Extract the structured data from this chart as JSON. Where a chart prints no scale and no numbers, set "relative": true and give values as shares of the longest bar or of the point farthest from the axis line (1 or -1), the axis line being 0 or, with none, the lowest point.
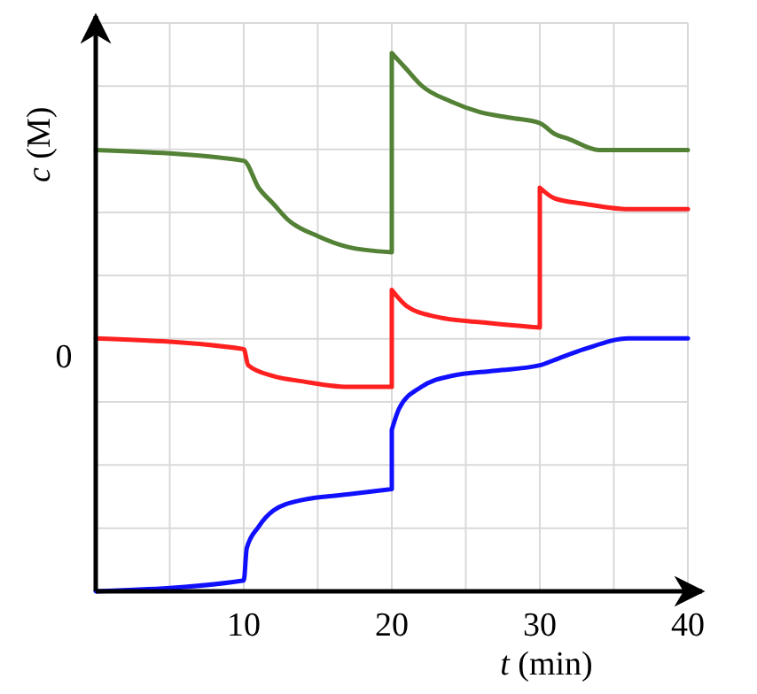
{
  "chart_data": {
    "type": "line",
    "relative": true,
    "xlabel": "t (min)",
    "ylabel": "c (M)",
    "xlim": [
      0,
      40
    ],
    "xticks": [
      {
        "value": 5,
        "label": null
      },
      10,
      {
        "value": 15,
        "label": null
      },
      20,
      {
        "value": 25,
        "label": null
      },
      30,
      {
        "value": 35,
        "label": null
      },
      40
    ],
    "grid": true,
    "line_style": "solid",
    "annotations": [
      "0"
    ],
    "series": [
      {
        "color": "#538135",
        "x": [
          0,
          10,
          11,
          12,
          13,
          15,
          17,
          20,
          20,
          21,
          22,
          24,
          26,
          28,
          30,
          31,
          32,
          34,
          37,
          40
        ],
        "values": [
          0.82,
          0.8,
          0.75,
          0.72,
          0.69,
          0.66,
          0.64,
          0.63,
          1.0,
          0.97,
          0.94,
          0.91,
          0.89,
          0.88,
          0.87,
          0.85,
          0.84,
          0.82,
          0.82,
          0.82
        ]
      },
      {
        "color": "#ff2020",
        "x": [
          0,
          10,
          10.3,
          12,
          14,
          17,
          20,
          20,
          21,
          23,
          26,
          30,
          30,
          31,
          33,
          36,
          40
        ],
        "values": [
          0.47,
          0.45,
          0.42,
          0.4,
          0.39,
          0.38,
          0.38,
          0.56,
          0.53,
          0.51,
          0.5,
          0.49,
          0.75,
          0.73,
          0.72,
          0.71,
          0.71
        ]
      },
      {
        "color": "#1010ff",
        "x": [
          0,
          10,
          10.2,
          11,
          12,
          14,
          17,
          20,
          20,
          20.5,
          22,
          24,
          27,
          30,
          31,
          33,
          36,
          40
        ],
        "values": [
          0,
          0.02,
          0.08,
          0.12,
          0.15,
          0.17,
          0.18,
          0.19,
          0.3,
          0.34,
          0.38,
          0.4,
          0.41,
          0.42,
          0.43,
          0.45,
          0.47,
          0.47
        ]
      }
    ]
  }
}
